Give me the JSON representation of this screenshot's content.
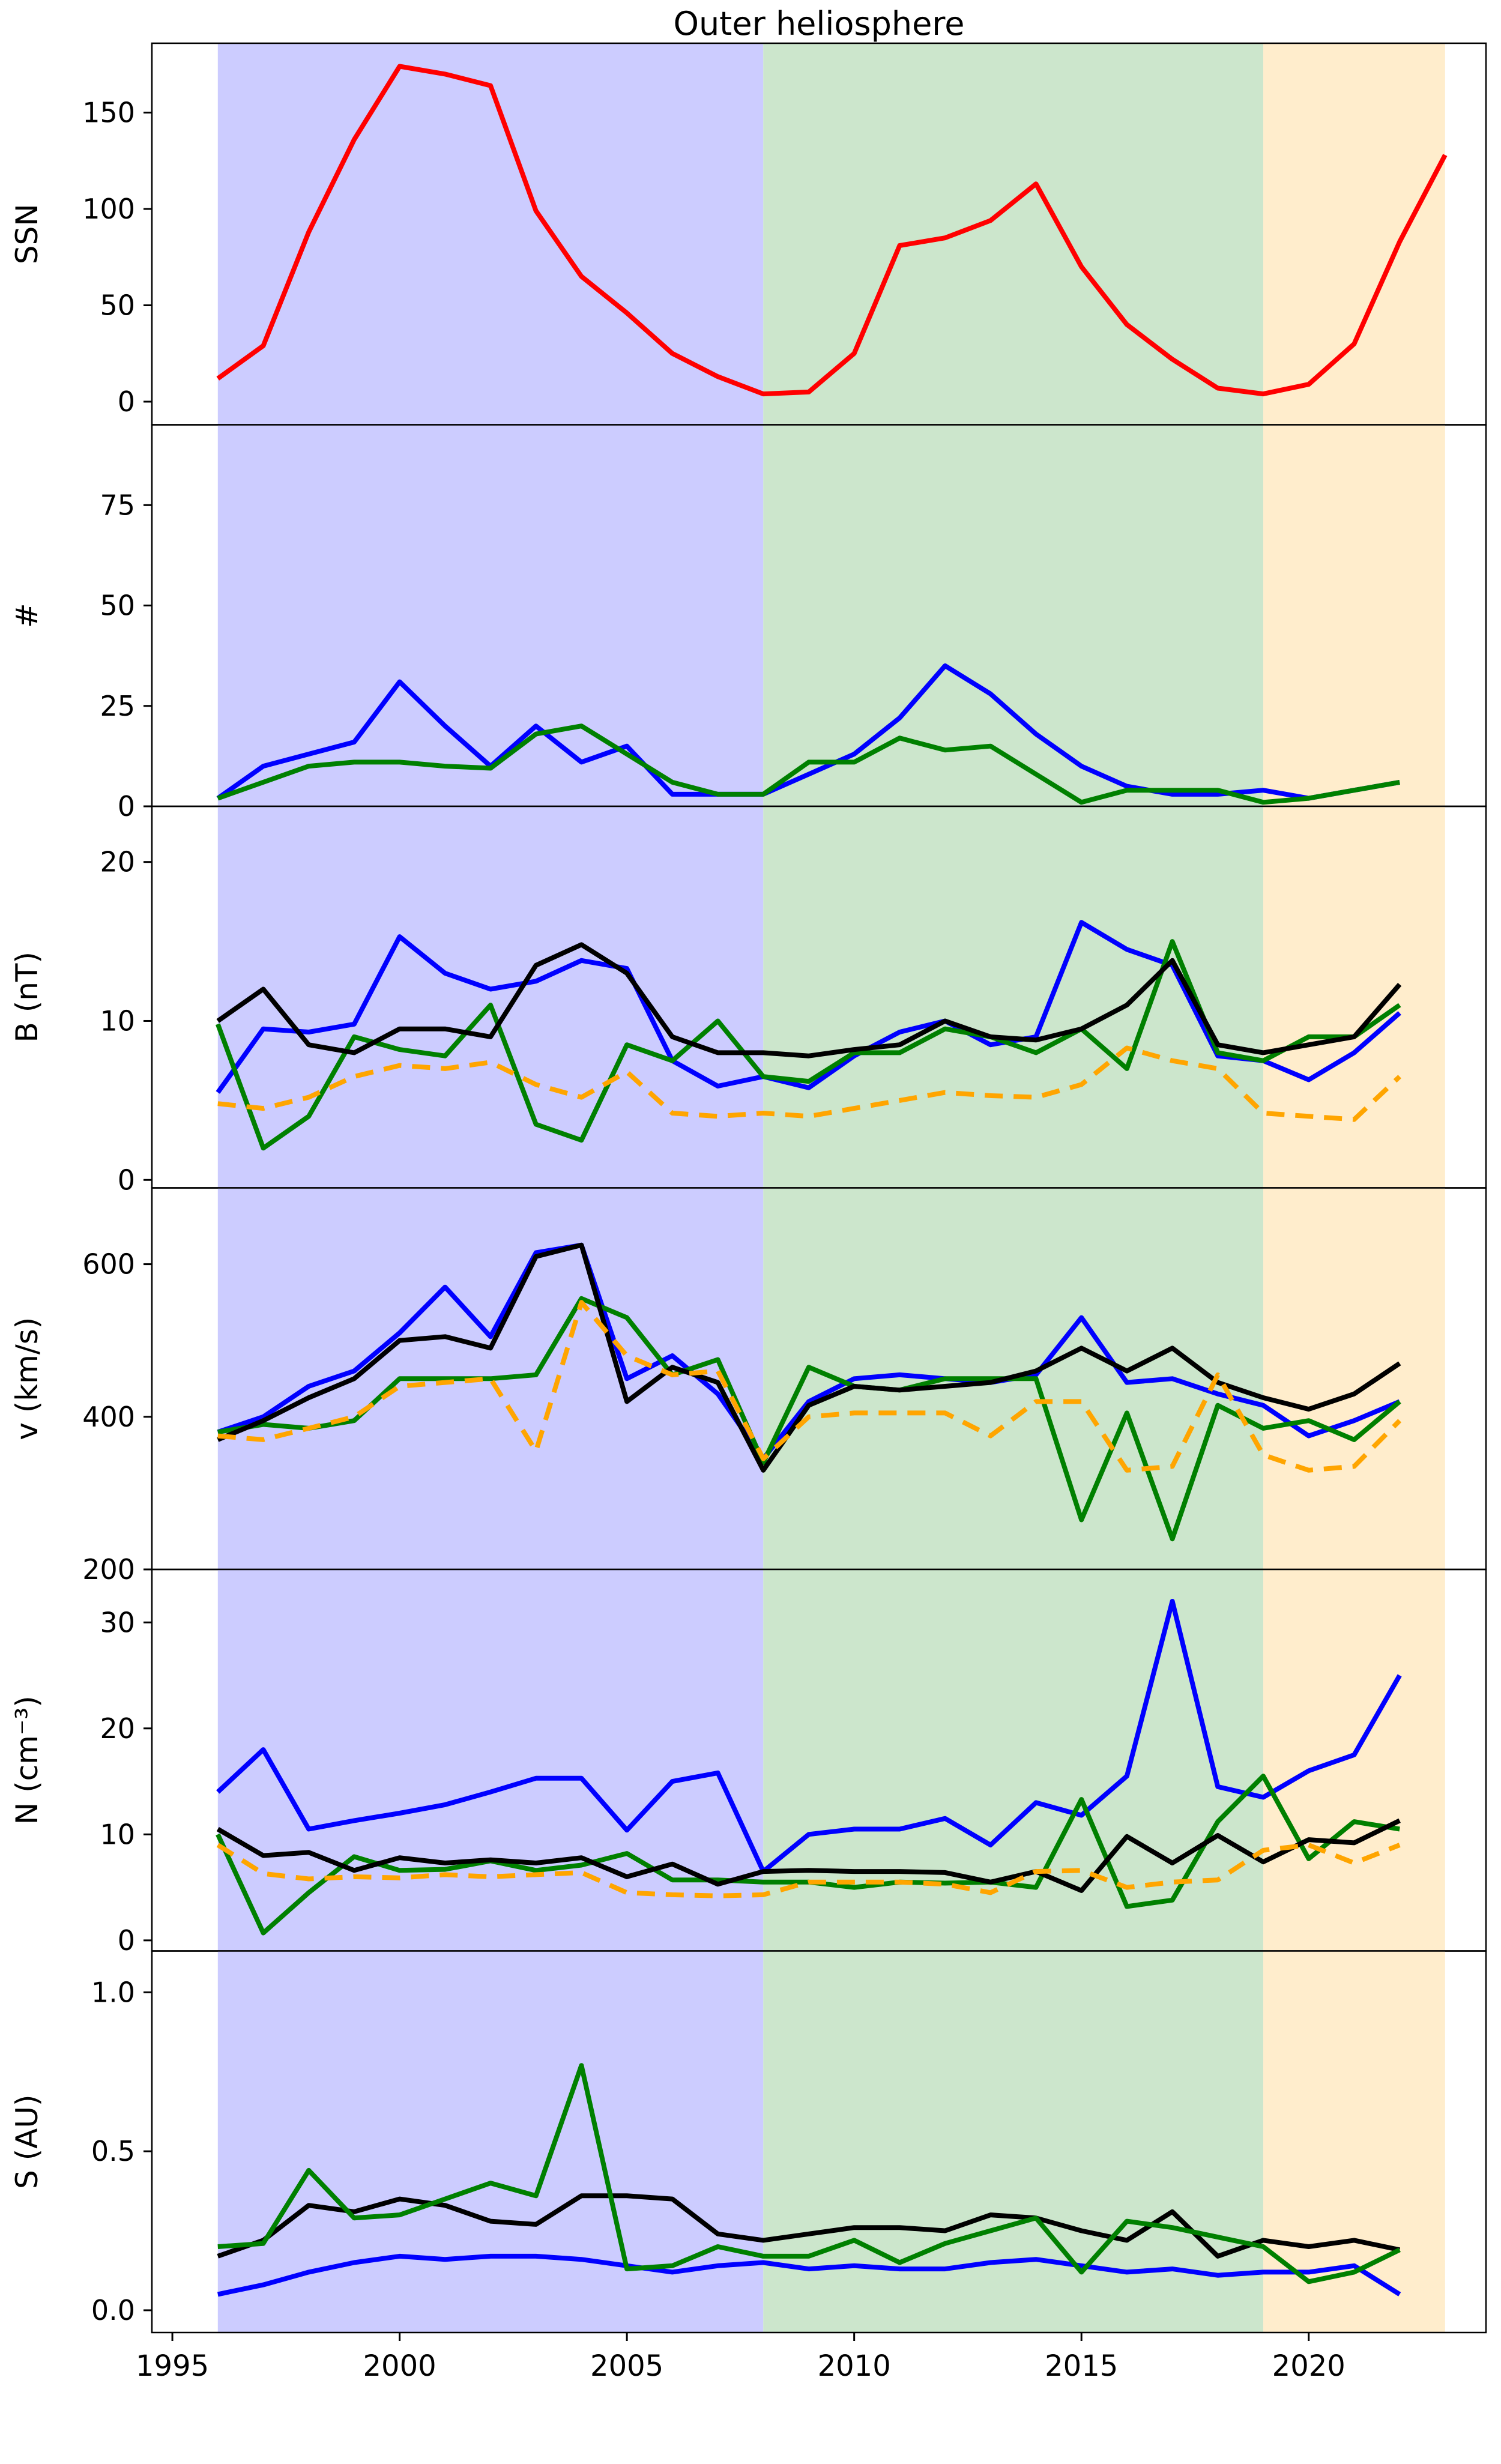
{
  "title": "Outer heliosphere",
  "colors": {
    "red": "#ff0000",
    "blue": "#0000ff",
    "green": "#008000",
    "black": "#000000",
    "orange": "#ffa500",
    "band_1996_2008": "#ccccff",
    "band_2008_2019": "#cce6cc",
    "band_2019_2023": "#ffedcc",
    "spine": "#000000"
  },
  "x_axis": {
    "lim": [
      1994.55,
      2023.9
    ],
    "tick_values": [
      1995,
      2000,
      2005,
      2010,
      2015,
      2020
    ],
    "tick_labels": [
      "1995",
      "2000",
      "2005",
      "2010",
      "2015",
      "2020"
    ]
  },
  "bands": [
    {
      "name": "shaded-band-1996-2008",
      "from": 1996,
      "to": 2008,
      "color_key": "band_1996_2008"
    },
    {
      "name": "shaded-band-2008-2019",
      "from": 2008,
      "to": 2019,
      "color_key": "band_2008_2019"
    },
    {
      "name": "shaded-band-2019-2023",
      "from": 2019,
      "to": 2023,
      "color_key": "band_2019_2023"
    }
  ],
  "chart_data": [
    {
      "type": "line",
      "ylabel": "SSN",
      "ylim": [
        -12,
        186
      ],
      "yticks": [
        0,
        50,
        100,
        150
      ],
      "ytick_labels": [
        "0",
        "50",
        "100",
        "150"
      ],
      "grid": false,
      "legend": "none",
      "x": [
        1996,
        1997,
        1998,
        1999,
        2000,
        2001,
        2002,
        2003,
        2004,
        2005,
        2006,
        2007,
        2008,
        2009,
        2010,
        2011,
        2012,
        2013,
        2014,
        2015,
        2016,
        2017,
        2018,
        2019,
        2020,
        2021,
        2022,
        2023
      ],
      "series": [
        {
          "name": "sunspot-number",
          "color_key": "red",
          "dash": false,
          "values": [
            12,
            29,
            88,
            136,
            174,
            170,
            164,
            99,
            65,
            46,
            25,
            13,
            4,
            5,
            25,
            81,
            85,
            94,
            113,
            70,
            40,
            22,
            7,
            4,
            9,
            30,
            83,
            128
          ]
        }
      ]
    },
    {
      "type": "line",
      "ylabel": "#",
      "ylim": [
        0,
        95
      ],
      "yticks": [
        0,
        25,
        50,
        75
      ],
      "ytick_labels": [
        "0",
        "25",
        "50",
        "75"
      ],
      "grid": false,
      "legend": "none",
      "x": [
        1996,
        1997,
        1998,
        1999,
        2000,
        2001,
        2002,
        2003,
        2004,
        2005,
        2006,
        2007,
        2008,
        2009,
        2010,
        2011,
        2012,
        2013,
        2014,
        2015,
        2016,
        2017,
        2018,
        2019,
        2020,
        2021,
        2022
      ],
      "series": [
        {
          "name": "count-blue",
          "color_key": "blue",
          "dash": false,
          "values": [
            2,
            10,
            13,
            16,
            31,
            20,
            10,
            20,
            11,
            15,
            3,
            3,
            3,
            8,
            13,
            22,
            35,
            28,
            18,
            10,
            5,
            3,
            3,
            4,
            2,
            4,
            6
          ]
        },
        {
          "name": "count-green",
          "color_key": "green",
          "dash": false,
          "values": [
            2,
            6,
            10,
            11,
            11,
            10,
            9.5,
            18,
            20,
            13,
            6,
            3,
            3,
            11,
            11,
            17,
            14,
            15,
            8,
            1,
            4,
            4,
            4,
            1,
            2,
            4,
            6
          ]
        }
      ]
    },
    {
      "type": "line",
      "ylabel": "B (nT)",
      "ylim": [
        -0.5,
        23.5
      ],
      "yticks": [
        0,
        10,
        20
      ],
      "ytick_labels": [
        "0",
        "10",
        "20"
      ],
      "grid": false,
      "legend": "none",
      "x": [
        1996,
        1997,
        1998,
        1999,
        2000,
        2001,
        2002,
        2003,
        2004,
        2005,
        2006,
        2007,
        2008,
        2009,
        2010,
        2011,
        2012,
        2013,
        2014,
        2015,
        2016,
        2017,
        2018,
        2019,
        2020,
        2021,
        2022
      ],
      "series": [
        {
          "name": "B-blue",
          "color_key": "blue",
          "dash": false,
          "values": [
            5.5,
            9.5,
            9.3,
            9.8,
            15.3,
            13,
            12,
            12.5,
            13.8,
            13.3,
            7.5,
            5.9,
            6.5,
            5.8,
            7.8,
            9.3,
            10,
            8.5,
            9,
            16.2,
            14.5,
            13.5,
            7.8,
            7.5,
            6.3,
            8,
            10.5
          ]
        },
        {
          "name": "B-green",
          "color_key": "green",
          "dash": false,
          "values": [
            9.8,
            2,
            4,
            9,
            8.2,
            7.8,
            11,
            3.5,
            2.5,
            8.5,
            7.5,
            10,
            6.5,
            6.2,
            8,
            8,
            9.5,
            9,
            8,
            9.5,
            7,
            15,
            8,
            7.5,
            9,
            9,
            11
          ]
        },
        {
          "name": "B-black",
          "color_key": "black",
          "dash": false,
          "values": [
            10,
            12,
            8.5,
            8,
            9.5,
            9.5,
            9,
            13.5,
            14.8,
            13,
            9,
            8,
            8,
            7.8,
            8.2,
            8.5,
            10,
            9,
            8.8,
            9.5,
            11,
            13.8,
            8.5,
            8,
            8.5,
            9,
            12.3
          ]
        },
        {
          "name": "B-orange-dashed",
          "color_key": "orange",
          "dash": true,
          "values": [
            4.8,
            4.5,
            5.2,
            6.5,
            7.2,
            7,
            7.4,
            6,
            5.2,
            6.8,
            4.2,
            4,
            4.2,
            4,
            4.5,
            5,
            5.5,
            5.3,
            5.2,
            6,
            8.3,
            7.5,
            7,
            4.2,
            4,
            3.8,
            6.5
          ]
        }
      ]
    },
    {
      "type": "line",
      "ylabel": "v (km/s)",
      "ylim": [
        200,
        700
      ],
      "yticks": [
        200,
        400,
        600
      ],
      "ytick_labels": [
        "200",
        "400",
        "600"
      ],
      "grid": false,
      "legend": "none",
      "x": [
        1996,
        1997,
        1998,
        1999,
        2000,
        2001,
        2002,
        2003,
        2004,
        2005,
        2006,
        2007,
        2008,
        2009,
        2010,
        2011,
        2012,
        2013,
        2014,
        2015,
        2016,
        2017,
        2018,
        2019,
        2020,
        2021,
        2022
      ],
      "series": [
        {
          "name": "v-blue",
          "color_key": "blue",
          "dash": false,
          "values": [
            380,
            400,
            440,
            460,
            510,
            570,
            505,
            615,
            625,
            450,
            480,
            430,
            345,
            420,
            450,
            455,
            450,
            445,
            455,
            530,
            445,
            450,
            430,
            415,
            375,
            395,
            420
          ]
        },
        {
          "name": "v-green",
          "color_key": "green",
          "dash": false,
          "values": [
            380,
            390,
            385,
            395,
            450,
            450,
            450,
            455,
            555,
            530,
            455,
            475,
            340,
            465,
            440,
            435,
            450,
            450,
            450,
            265,
            405,
            240,
            415,
            385,
            395,
            370,
            420
          ]
        },
        {
          "name": "v-black",
          "color_key": "black",
          "dash": false,
          "values": [
            370,
            395,
            425,
            450,
            500,
            505,
            490,
            610,
            625,
            420,
            465,
            445,
            330,
            415,
            440,
            435,
            440,
            445,
            460,
            490,
            460,
            490,
            445,
            425,
            410,
            430,
            470
          ]
        },
        {
          "name": "v-orange-dashed",
          "color_key": "orange",
          "dash": true,
          "values": [
            375,
            370,
            385,
            400,
            440,
            445,
            450,
            355,
            550,
            480,
            455,
            460,
            345,
            400,
            405,
            405,
            405,
            375,
            420,
            420,
            330,
            335,
            455,
            350,
            330,
            335,
            395
          ]
        }
      ]
    },
    {
      "type": "line",
      "ylabel": "N (cm⁻³)",
      "ylim": [
        -1,
        35
      ],
      "yticks": [
        0,
        10,
        20,
        30
      ],
      "ytick_labels": [
        "0",
        "10",
        "20",
        "30"
      ],
      "grid": false,
      "legend": "none",
      "x": [
        1996,
        1997,
        1998,
        1999,
        2000,
        2001,
        2002,
        2003,
        2004,
        2005,
        2006,
        2007,
        2008,
        2009,
        2010,
        2011,
        2012,
        2013,
        2014,
        2015,
        2016,
        2017,
        2018,
        2019,
        2020,
        2021,
        2022
      ],
      "series": [
        {
          "name": "N-blue",
          "color_key": "blue",
          "dash": false,
          "values": [
            14,
            18,
            10.5,
            11.3,
            12,
            12.8,
            14,
            15.3,
            15.3,
            10.4,
            15,
            15.8,
            6.5,
            10,
            10.5,
            10.5,
            11.5,
            9,
            13,
            11.8,
            15.5,
            32,
            14.5,
            13.5,
            16,
            17.5,
            25
          ]
        },
        {
          "name": "N-green",
          "color_key": "green",
          "dash": false,
          "values": [
            10,
            0.7,
            4.5,
            7.9,
            6.6,
            6.7,
            7.5,
            6.6,
            7.1,
            8.2,
            5.7,
            5.7,
            5.5,
            5.5,
            5,
            5.5,
            5.4,
            5.5,
            5,
            13.3,
            3.2,
            3.8,
            11.2,
            15.5,
            7.7,
            11.2,
            10.5
          ]
        },
        {
          "name": "N-black",
          "color_key": "black",
          "dash": false,
          "values": [
            10.5,
            8,
            8.3,
            6.6,
            7.8,
            7.3,
            7.6,
            7.3,
            7.8,
            6,
            7.2,
            5.3,
            6.5,
            6.6,
            6.5,
            6.5,
            6.4,
            5.5,
            6.5,
            4.7,
            9.8,
            7.3,
            9.9,
            7.4,
            9.5,
            9.2,
            11.3
          ]
        },
        {
          "name": "N-orange-dashed",
          "color_key": "orange",
          "dash": true,
          "values": [
            9,
            6.3,
            5.8,
            6,
            5.9,
            6.2,
            6,
            6.2,
            6.4,
            4.5,
            4.3,
            4.2,
            4.3,
            5.5,
            5.5,
            5.5,
            5.3,
            4.5,
            6.5,
            6.6,
            5,
            5.5,
            5.7,
            8.5,
            9,
            7.3,
            9
          ]
        }
      ]
    },
    {
      "type": "line",
      "ylabel": "S (AU)",
      "ylim": [
        -0.07,
        1.13
      ],
      "yticks": [
        0.0,
        0.5,
        1.0
      ],
      "ytick_labels": [
        "0.0",
        "0.5",
        "1.0"
      ],
      "grid": false,
      "legend": "none",
      "x": [
        1996,
        1997,
        1998,
        1999,
        2000,
        2001,
        2002,
        2003,
        2004,
        2005,
        2006,
        2007,
        2008,
        2009,
        2010,
        2011,
        2012,
        2013,
        2014,
        2015,
        2016,
        2017,
        2018,
        2019,
        2020,
        2021,
        2022
      ],
      "series": [
        {
          "name": "S-blue",
          "color_key": "blue",
          "dash": false,
          "values": [
            0.05,
            0.08,
            0.12,
            0.15,
            0.17,
            0.16,
            0.17,
            0.17,
            0.16,
            0.14,
            0.12,
            0.14,
            0.15,
            0.13,
            0.14,
            0.13,
            0.13,
            0.15,
            0.16,
            0.14,
            0.12,
            0.13,
            0.11,
            0.12,
            0.12,
            0.14,
            0.05
          ]
        },
        {
          "name": "S-black",
          "color_key": "black",
          "dash": false,
          "values": [
            0.17,
            0.22,
            0.33,
            0.31,
            0.35,
            0.33,
            0.28,
            0.27,
            0.36,
            0.36,
            0.35,
            0.24,
            0.22,
            0.24,
            0.26,
            0.26,
            0.25,
            0.3,
            0.29,
            0.25,
            0.22,
            0.31,
            0.17,
            0.22,
            0.2,
            0.22,
            0.19
          ]
        },
        {
          "name": "S-green",
          "color_key": "green",
          "dash": false,
          "values": [
            0.2,
            0.21,
            0.44,
            0.29,
            0.3,
            0.35,
            0.4,
            0.36,
            0.77,
            0.13,
            0.14,
            0.2,
            0.17,
            0.17,
            0.22,
            0.15,
            0.21,
            0.25,
            0.29,
            0.12,
            0.28,
            0.26,
            0.23,
            0.2,
            0.09,
            0.12,
            0.19
          ]
        }
      ]
    }
  ]
}
